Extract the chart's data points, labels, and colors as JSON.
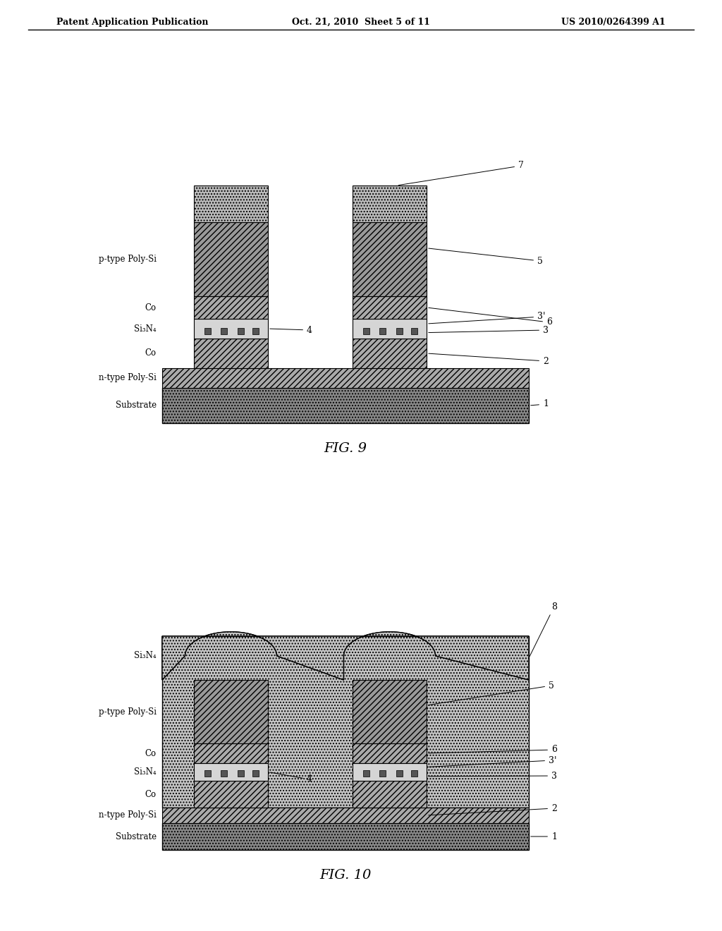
{
  "header_left": "Patent Application Publication",
  "header_mid": "Oct. 21, 2010  Sheet 5 of 11",
  "header_right": "US 2010/0264399 A1",
  "fig9_caption": "FIG. 9",
  "fig10_caption": "FIG. 10",
  "bg_color": "#ffffff"
}
